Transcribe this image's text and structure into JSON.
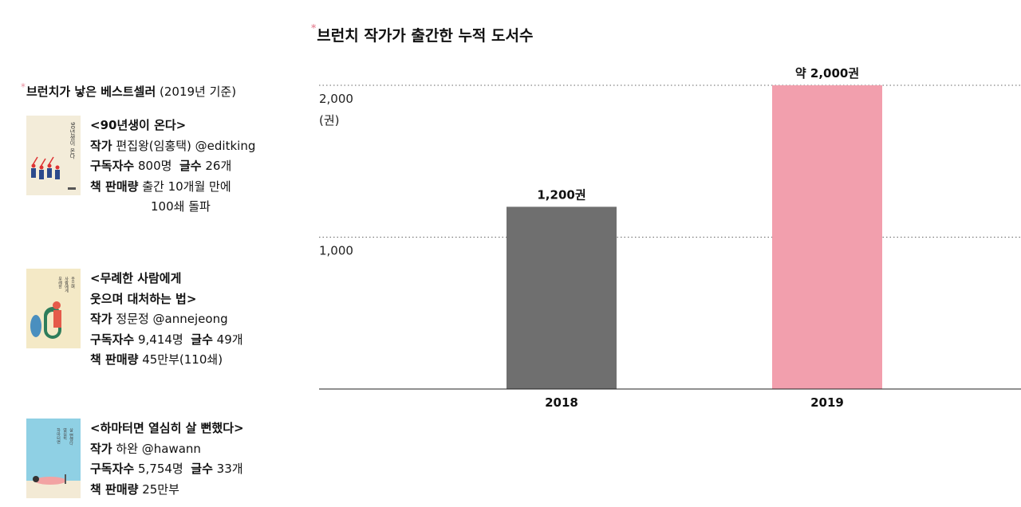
{
  "left_panel": {
    "title_main": "브런치가 낳은 베스트셀러",
    "title_sub": "(2019년 기준)",
    "books": [
      {
        "title_lines": [
          "<90년생이 온다>"
        ],
        "author_label": "작가",
        "author_value": "편집왕(임홍택) @editking",
        "subs_label": "구독자수",
        "subs_value": "800명",
        "posts_label": "글수",
        "posts_value": "26개",
        "sales_label": "책 판매량",
        "sales_lines": [
          "출간 10개월 만에",
          "100쇄 돌파"
        ],
        "cover_color": "#f3ecd9"
      },
      {
        "title_lines": [
          "<무례한 사람에게",
          "웃으며 대처하는 법>"
        ],
        "author_label": "작가",
        "author_value": "정문정 @annejeong",
        "subs_label": "구독자수",
        "subs_value": "9,414명",
        "posts_label": "글수",
        "posts_value": "49개",
        "sales_label": "책 판매량",
        "sales_lines": [
          "45만부(110쇄)"
        ],
        "cover_color": "#f4e9c6"
      },
      {
        "title_lines": [
          "<하마터면 열심히 살 뻔했다>"
        ],
        "author_label": "작가",
        "author_value": "하완 @hawann",
        "subs_label": "구독자수",
        "subs_value": "5,754명",
        "posts_label": "글수",
        "posts_value": "33개",
        "sales_label": "책 판매량",
        "sales_lines": [
          "25만부"
        ],
        "cover_color": "#8fd0e4"
      }
    ]
  },
  "chart_data": {
    "type": "bar",
    "title": "브런치 작가가 출간한 누적 도서수",
    "categories": [
      "2018",
      "2019"
    ],
    "values": [
      1200,
      2000
    ],
    "data_labels": [
      "1,200권",
      "약 2,000권"
    ],
    "colors": [
      "#6f6f6f",
      "#f29fad"
    ],
    "ylim": [
      0,
      2000
    ],
    "yticks": [
      1000,
      2000
    ],
    "ytick_labels": [
      "1,000",
      "2,000"
    ],
    "yunit": "(권)",
    "grid": true,
    "grid_style": "dotted"
  },
  "colors": {
    "accent_star": "#e891a0",
    "bar_2018": "#6f6f6f",
    "bar_2019": "#f29fad"
  }
}
